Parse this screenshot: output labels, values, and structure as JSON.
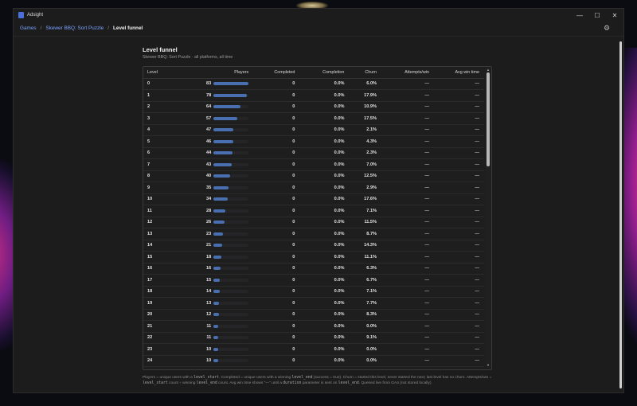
{
  "window": {
    "title": "Adsight",
    "minimize": "—",
    "maximize": "☐",
    "close": "✕"
  },
  "breadcrumb": [
    "Games",
    "Skewer BBQ: Sort Puzzle",
    "Level funnel"
  ],
  "page": {
    "title": "Level funnel",
    "subtitle": "Skewer BBQ: Sort Puzzle · all platforms, all time"
  },
  "table": {
    "headers": [
      "Level",
      "Players",
      "Completed",
      "Completion",
      "Churn",
      "Attempts/win",
      "Avg win time"
    ],
    "max_players": 83,
    "rows": [
      {
        "level": "0",
        "players": "83",
        "completed": "0",
        "completion": "0.0%",
        "churn": "6.0%",
        "attempts": "—",
        "avg": "—"
      },
      {
        "level": "1",
        "players": "78",
        "completed": "0",
        "completion": "0.0%",
        "churn": "17.9%",
        "attempts": "—",
        "avg": "—"
      },
      {
        "level": "2",
        "players": "64",
        "completed": "0",
        "completion": "0.0%",
        "churn": "10.9%",
        "attempts": "—",
        "avg": "—"
      },
      {
        "level": "3",
        "players": "57",
        "completed": "0",
        "completion": "0.0%",
        "churn": "17.5%",
        "attempts": "—",
        "avg": "—"
      },
      {
        "level": "4",
        "players": "47",
        "completed": "0",
        "completion": "0.0%",
        "churn": "2.1%",
        "attempts": "—",
        "avg": "—"
      },
      {
        "level": "5",
        "players": "46",
        "completed": "0",
        "completion": "0.0%",
        "churn": "4.3%",
        "attempts": "—",
        "avg": "—"
      },
      {
        "level": "6",
        "players": "44",
        "completed": "0",
        "completion": "0.0%",
        "churn": "2.3%",
        "attempts": "—",
        "avg": "—"
      },
      {
        "level": "7",
        "players": "43",
        "completed": "0",
        "completion": "0.0%",
        "churn": "7.0%",
        "attempts": "—",
        "avg": "—"
      },
      {
        "level": "8",
        "players": "40",
        "completed": "0",
        "completion": "0.0%",
        "churn": "12.5%",
        "attempts": "—",
        "avg": "—"
      },
      {
        "level": "9",
        "players": "35",
        "completed": "0",
        "completion": "0.0%",
        "churn": "2.9%",
        "attempts": "—",
        "avg": "—"
      },
      {
        "level": "10",
        "players": "34",
        "completed": "0",
        "completion": "0.0%",
        "churn": "17.6%",
        "attempts": "—",
        "avg": "—"
      },
      {
        "level": "11",
        "players": "28",
        "completed": "0",
        "completion": "0.0%",
        "churn": "7.1%",
        "attempts": "—",
        "avg": "—"
      },
      {
        "level": "12",
        "players": "26",
        "completed": "0",
        "completion": "0.0%",
        "churn": "11.5%",
        "attempts": "—",
        "avg": "—"
      },
      {
        "level": "13",
        "players": "23",
        "completed": "0",
        "completion": "0.0%",
        "churn": "8.7%",
        "attempts": "—",
        "avg": "—"
      },
      {
        "level": "14",
        "players": "21",
        "completed": "0",
        "completion": "0.0%",
        "churn": "14.3%",
        "attempts": "—",
        "avg": "—"
      },
      {
        "level": "15",
        "players": "18",
        "completed": "0",
        "completion": "0.0%",
        "churn": "11.1%",
        "attempts": "—",
        "avg": "—"
      },
      {
        "level": "16",
        "players": "16",
        "completed": "0",
        "completion": "0.0%",
        "churn": "6.3%",
        "attempts": "—",
        "avg": "—"
      },
      {
        "level": "17",
        "players": "15",
        "completed": "0",
        "completion": "0.0%",
        "churn": "6.7%",
        "attempts": "—",
        "avg": "—"
      },
      {
        "level": "18",
        "players": "14",
        "completed": "0",
        "completion": "0.0%",
        "churn": "7.1%",
        "attempts": "—",
        "avg": "—"
      },
      {
        "level": "19",
        "players": "13",
        "completed": "0",
        "completion": "0.0%",
        "churn": "7.7%",
        "attempts": "—",
        "avg": "—"
      },
      {
        "level": "20",
        "players": "12",
        "completed": "0",
        "completion": "0.0%",
        "churn": "8.3%",
        "attempts": "—",
        "avg": "—"
      },
      {
        "level": "21",
        "players": "11",
        "completed": "0",
        "completion": "0.0%",
        "churn": "0.0%",
        "attempts": "—",
        "avg": "—"
      },
      {
        "level": "22",
        "players": "11",
        "completed": "0",
        "completion": "0.0%",
        "churn": "9.1%",
        "attempts": "—",
        "avg": "—"
      },
      {
        "level": "23",
        "players": "10",
        "completed": "0",
        "completion": "0.0%",
        "churn": "0.0%",
        "attempts": "—",
        "avg": "—"
      },
      {
        "level": "24",
        "players": "10",
        "completed": "0",
        "completion": "0.0%",
        "churn": "0.0%",
        "attempts": "—",
        "avg": "—"
      }
    ]
  },
  "footnote": {
    "p1": "Players = unique users with a ",
    "c1": "level_start",
    "p2": ". Completed = unique users with a winning ",
    "c2": "level_end",
    "p3": " (success = true). Churn = started this level, never started the next; last level has no churn. Attempts/win = ",
    "c3": "level_start",
    "p4": " count ÷ winning ",
    "c4": "level_end",
    "p5": " count. Avg win time shows \"—\" until a ",
    "c5": "duration",
    "p6": " parameter is sent on ",
    "c6": "level_end",
    "p7": ". Queried live from GA4 (not stored locally)."
  },
  "colors": {
    "accent": "#7aa2ff",
    "bar": "#4a6fb0",
    "background": "#1c1c1c"
  },
  "icons": {
    "settings": "gear-icon",
    "app": "app-icon"
  }
}
